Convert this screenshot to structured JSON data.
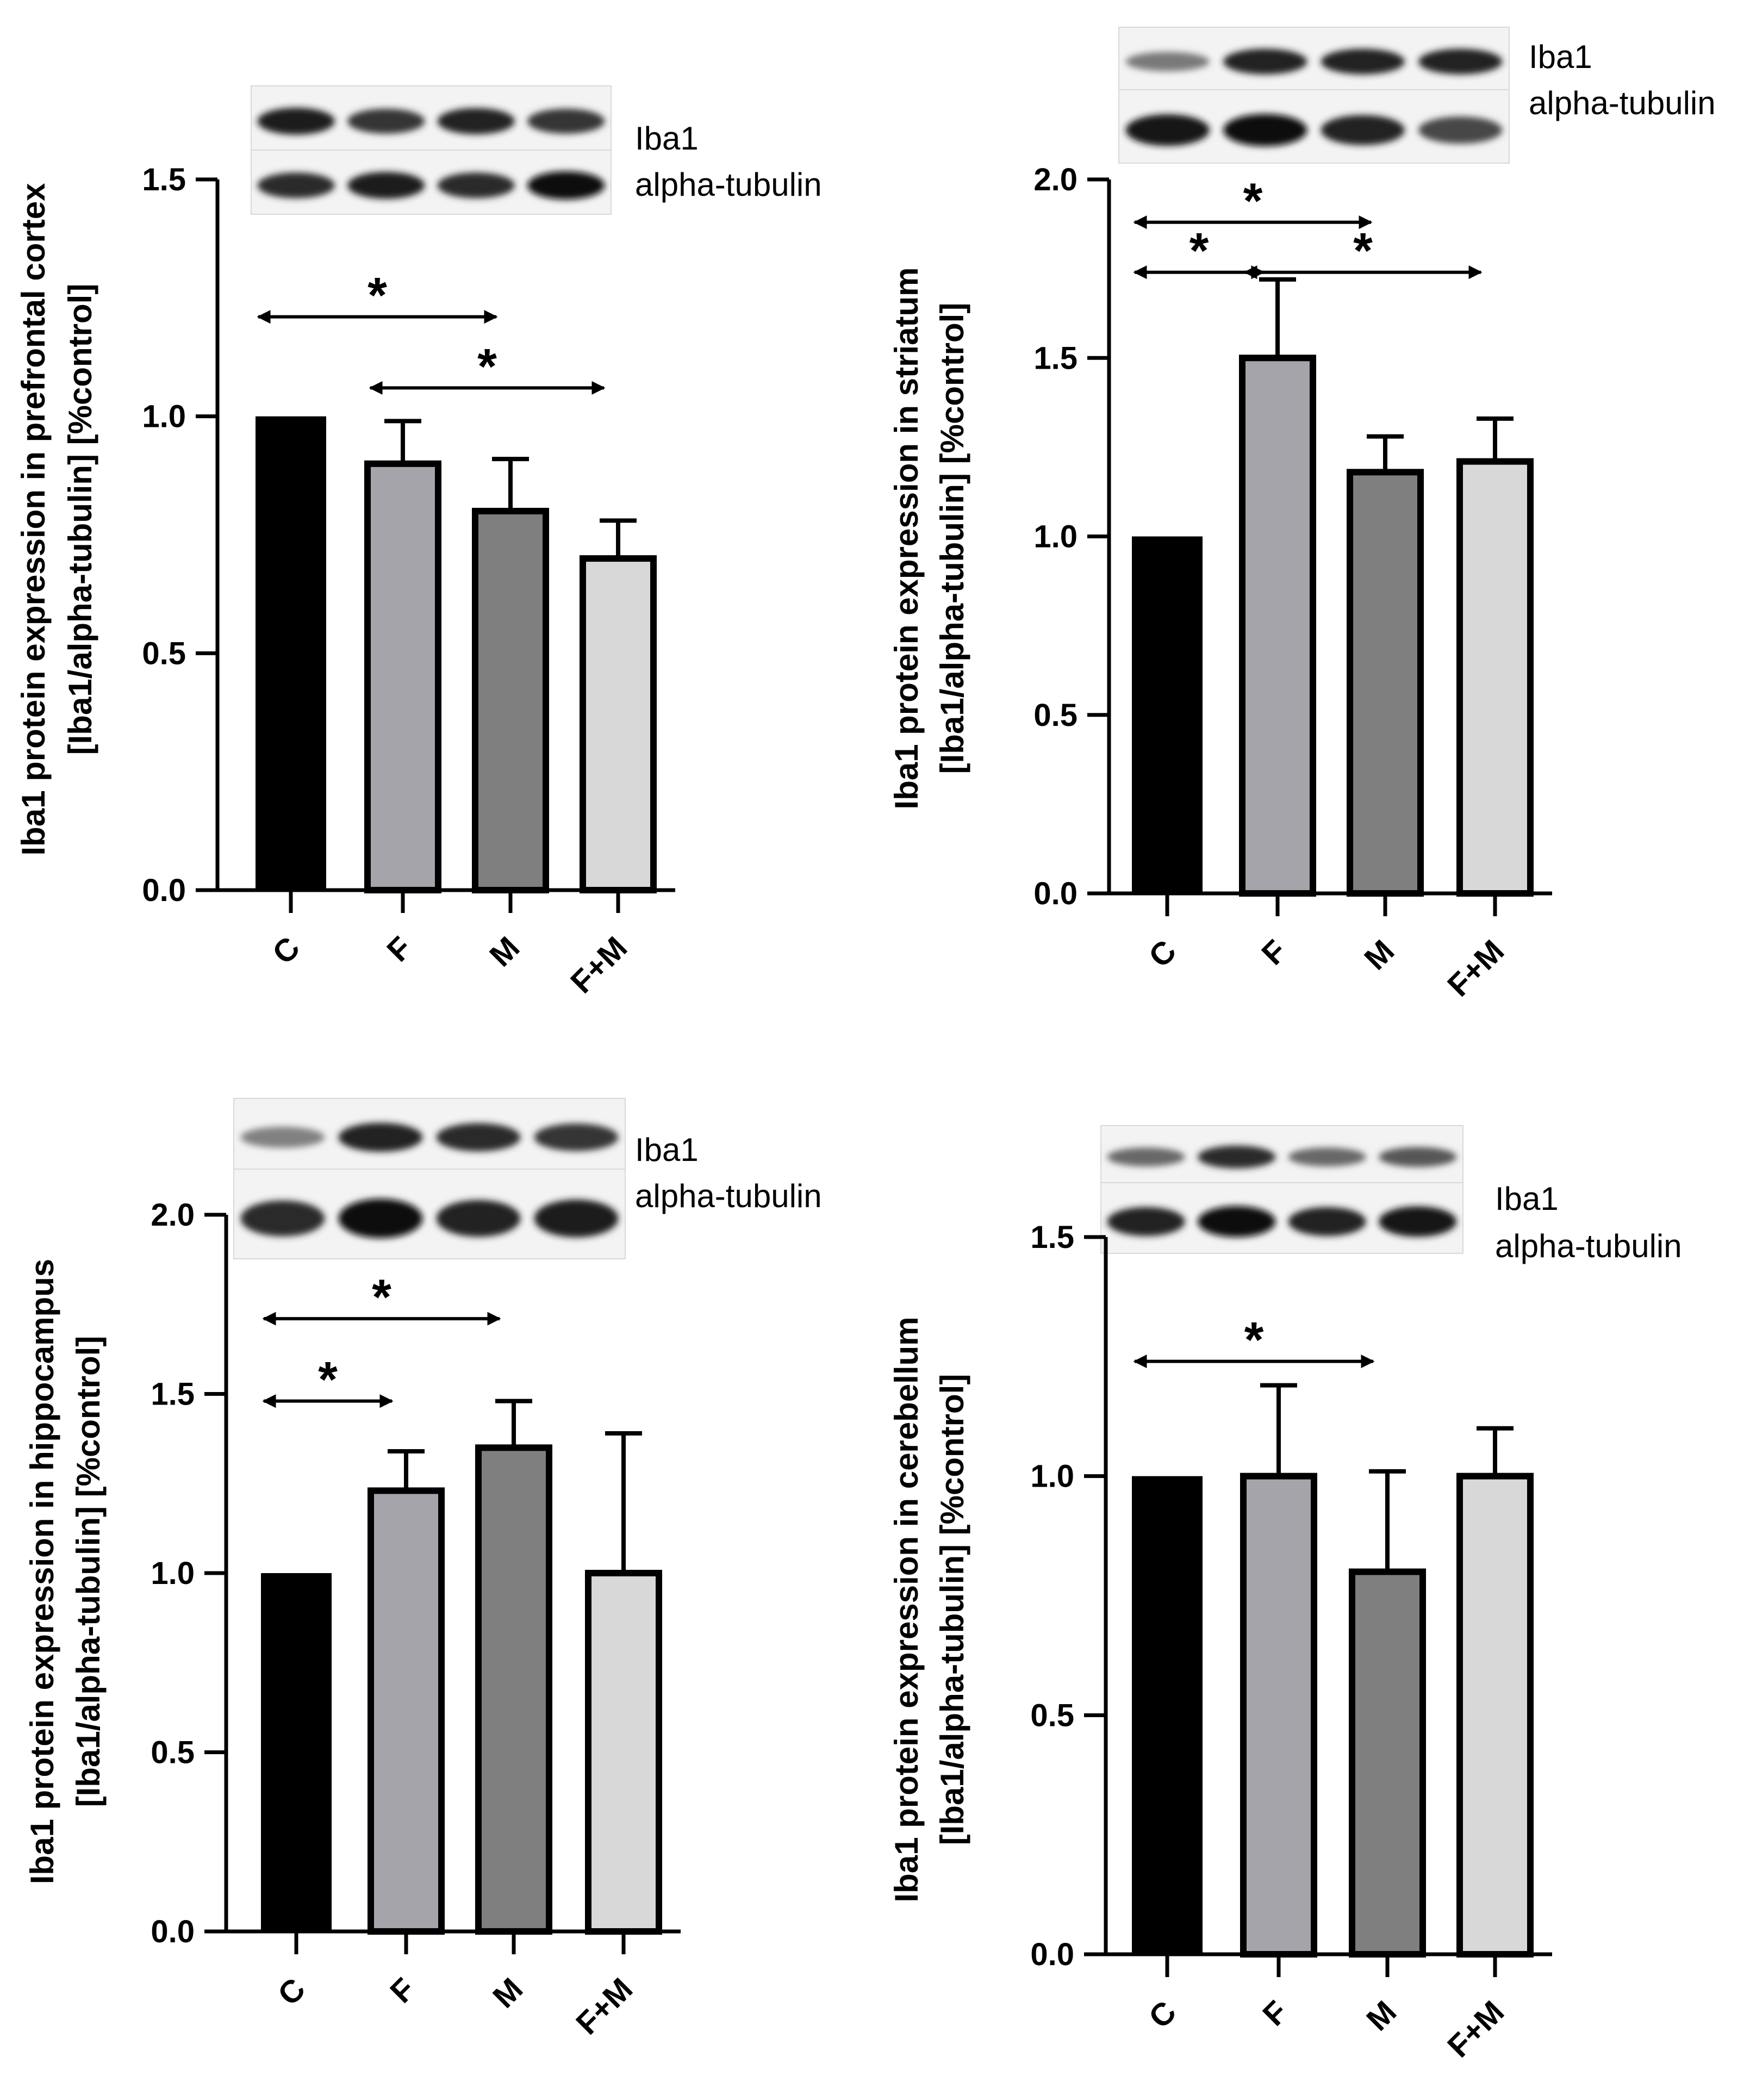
{
  "chart_data": [
    {
      "type": "bar",
      "panel": "top-left",
      "categories": [
        "C",
        "F",
        "M",
        "F+M"
      ],
      "values": [
        1.0,
        0.9,
        0.8,
        0.7
      ],
      "errors": [
        0.0,
        0.09,
        0.11,
        0.08
      ],
      "colors": [
        "#000000",
        "#a5a4ab",
        "#7f7f7f",
        "#d8d8d8"
      ],
      "ylabel_line1": "Iba1 protein expression in prefrontal cortex",
      "ylabel_line2": "[Iba1/alpha-tubulin] [%control]",
      "ylim": [
        0,
        1.5
      ],
      "yticks": [
        "0.0",
        "0.5",
        "1.0",
        "1.5"
      ],
      "blot_labels": [
        "Iba1",
        "alpha-tubulin"
      ],
      "significance": [
        {
          "from": "C",
          "to": "M",
          "y": 1.21,
          "label": "*"
        },
        {
          "from": "F",
          "to": "F+M",
          "y": 1.06,
          "label": "*"
        }
      ]
    },
    {
      "type": "bar",
      "panel": "top-right",
      "categories": [
        "C",
        "F",
        "M",
        "F+M"
      ],
      "values": [
        1.0,
        1.5,
        1.18,
        1.21
      ],
      "errors": [
        0.0,
        0.22,
        0.1,
        0.12
      ],
      "colors": [
        "#000000",
        "#a5a4ab",
        "#7f7f7f",
        "#d8d8d8"
      ],
      "ylabel_line1": "Iba1 protein expression in striatum",
      "ylabel_line2": "[Iba1/alpha-tubulin] [%control]",
      "ylim": [
        0,
        2.0
      ],
      "yticks": [
        "0.0",
        "0.5",
        "1.0",
        "1.5",
        "2.0"
      ],
      "blot_labels": [
        "Iba1",
        "alpha-tubulin"
      ],
      "significance": [
        {
          "from": "C",
          "to": "M",
          "y": 1.88,
          "label": "*"
        },
        {
          "from": "C",
          "to": "F",
          "y": 1.74,
          "label": "*"
        },
        {
          "from": "F",
          "to": "F+M",
          "y": 1.74,
          "label": "*"
        }
      ]
    },
    {
      "type": "bar",
      "panel": "bottom-left",
      "categories": [
        "C",
        "F",
        "M",
        "F+M"
      ],
      "values": [
        1.0,
        1.23,
        1.35,
        1.0
      ],
      "errors": [
        0.0,
        0.11,
        0.13,
        0.39
      ],
      "colors": [
        "#000000",
        "#a5a4ab",
        "#7f7f7f",
        "#d8d8d8"
      ],
      "ylabel_line1": "Iba1 protein expression in hippocampus",
      "ylabel_line2": "[Iba1/alpha-tubulin] [%control]",
      "ylim": [
        0,
        2.0
      ],
      "yticks": [
        "0.0",
        "0.5",
        "1.0",
        "1.5",
        "2.0"
      ],
      "blot_labels": [
        "Iba1",
        "alpha-tubulin"
      ],
      "significance": [
        {
          "from": "C",
          "to": "M",
          "y": 1.71,
          "label": "*"
        },
        {
          "from": "C",
          "to": "F",
          "y": 1.48,
          "label": "*"
        }
      ]
    },
    {
      "type": "bar",
      "panel": "bottom-right",
      "categories": [
        "C",
        "F",
        "M",
        "F+M"
      ],
      "values": [
        1.0,
        1.0,
        0.8,
        1.0
      ],
      "errors": [
        0.0,
        0.19,
        0.21,
        0.1
      ],
      "colors": [
        "#000000",
        "#a5a4ab",
        "#7f7f7f",
        "#d8d8d8"
      ],
      "ylabel_line1": "Iba1 protein expression in cerebellum",
      "ylabel_line2": "[Iba1/alpha-tubulin] [%control]",
      "ylim": [
        0,
        1.5
      ],
      "yticks": [
        "0.0",
        "0.5",
        "1.0",
        "1.5"
      ],
      "blot_labels": [
        "Iba1",
        "alpha-tubulin"
      ],
      "significance": [
        {
          "from": "C",
          "to": "M",
          "y": 1.24,
          "label": "*"
        }
      ]
    }
  ]
}
